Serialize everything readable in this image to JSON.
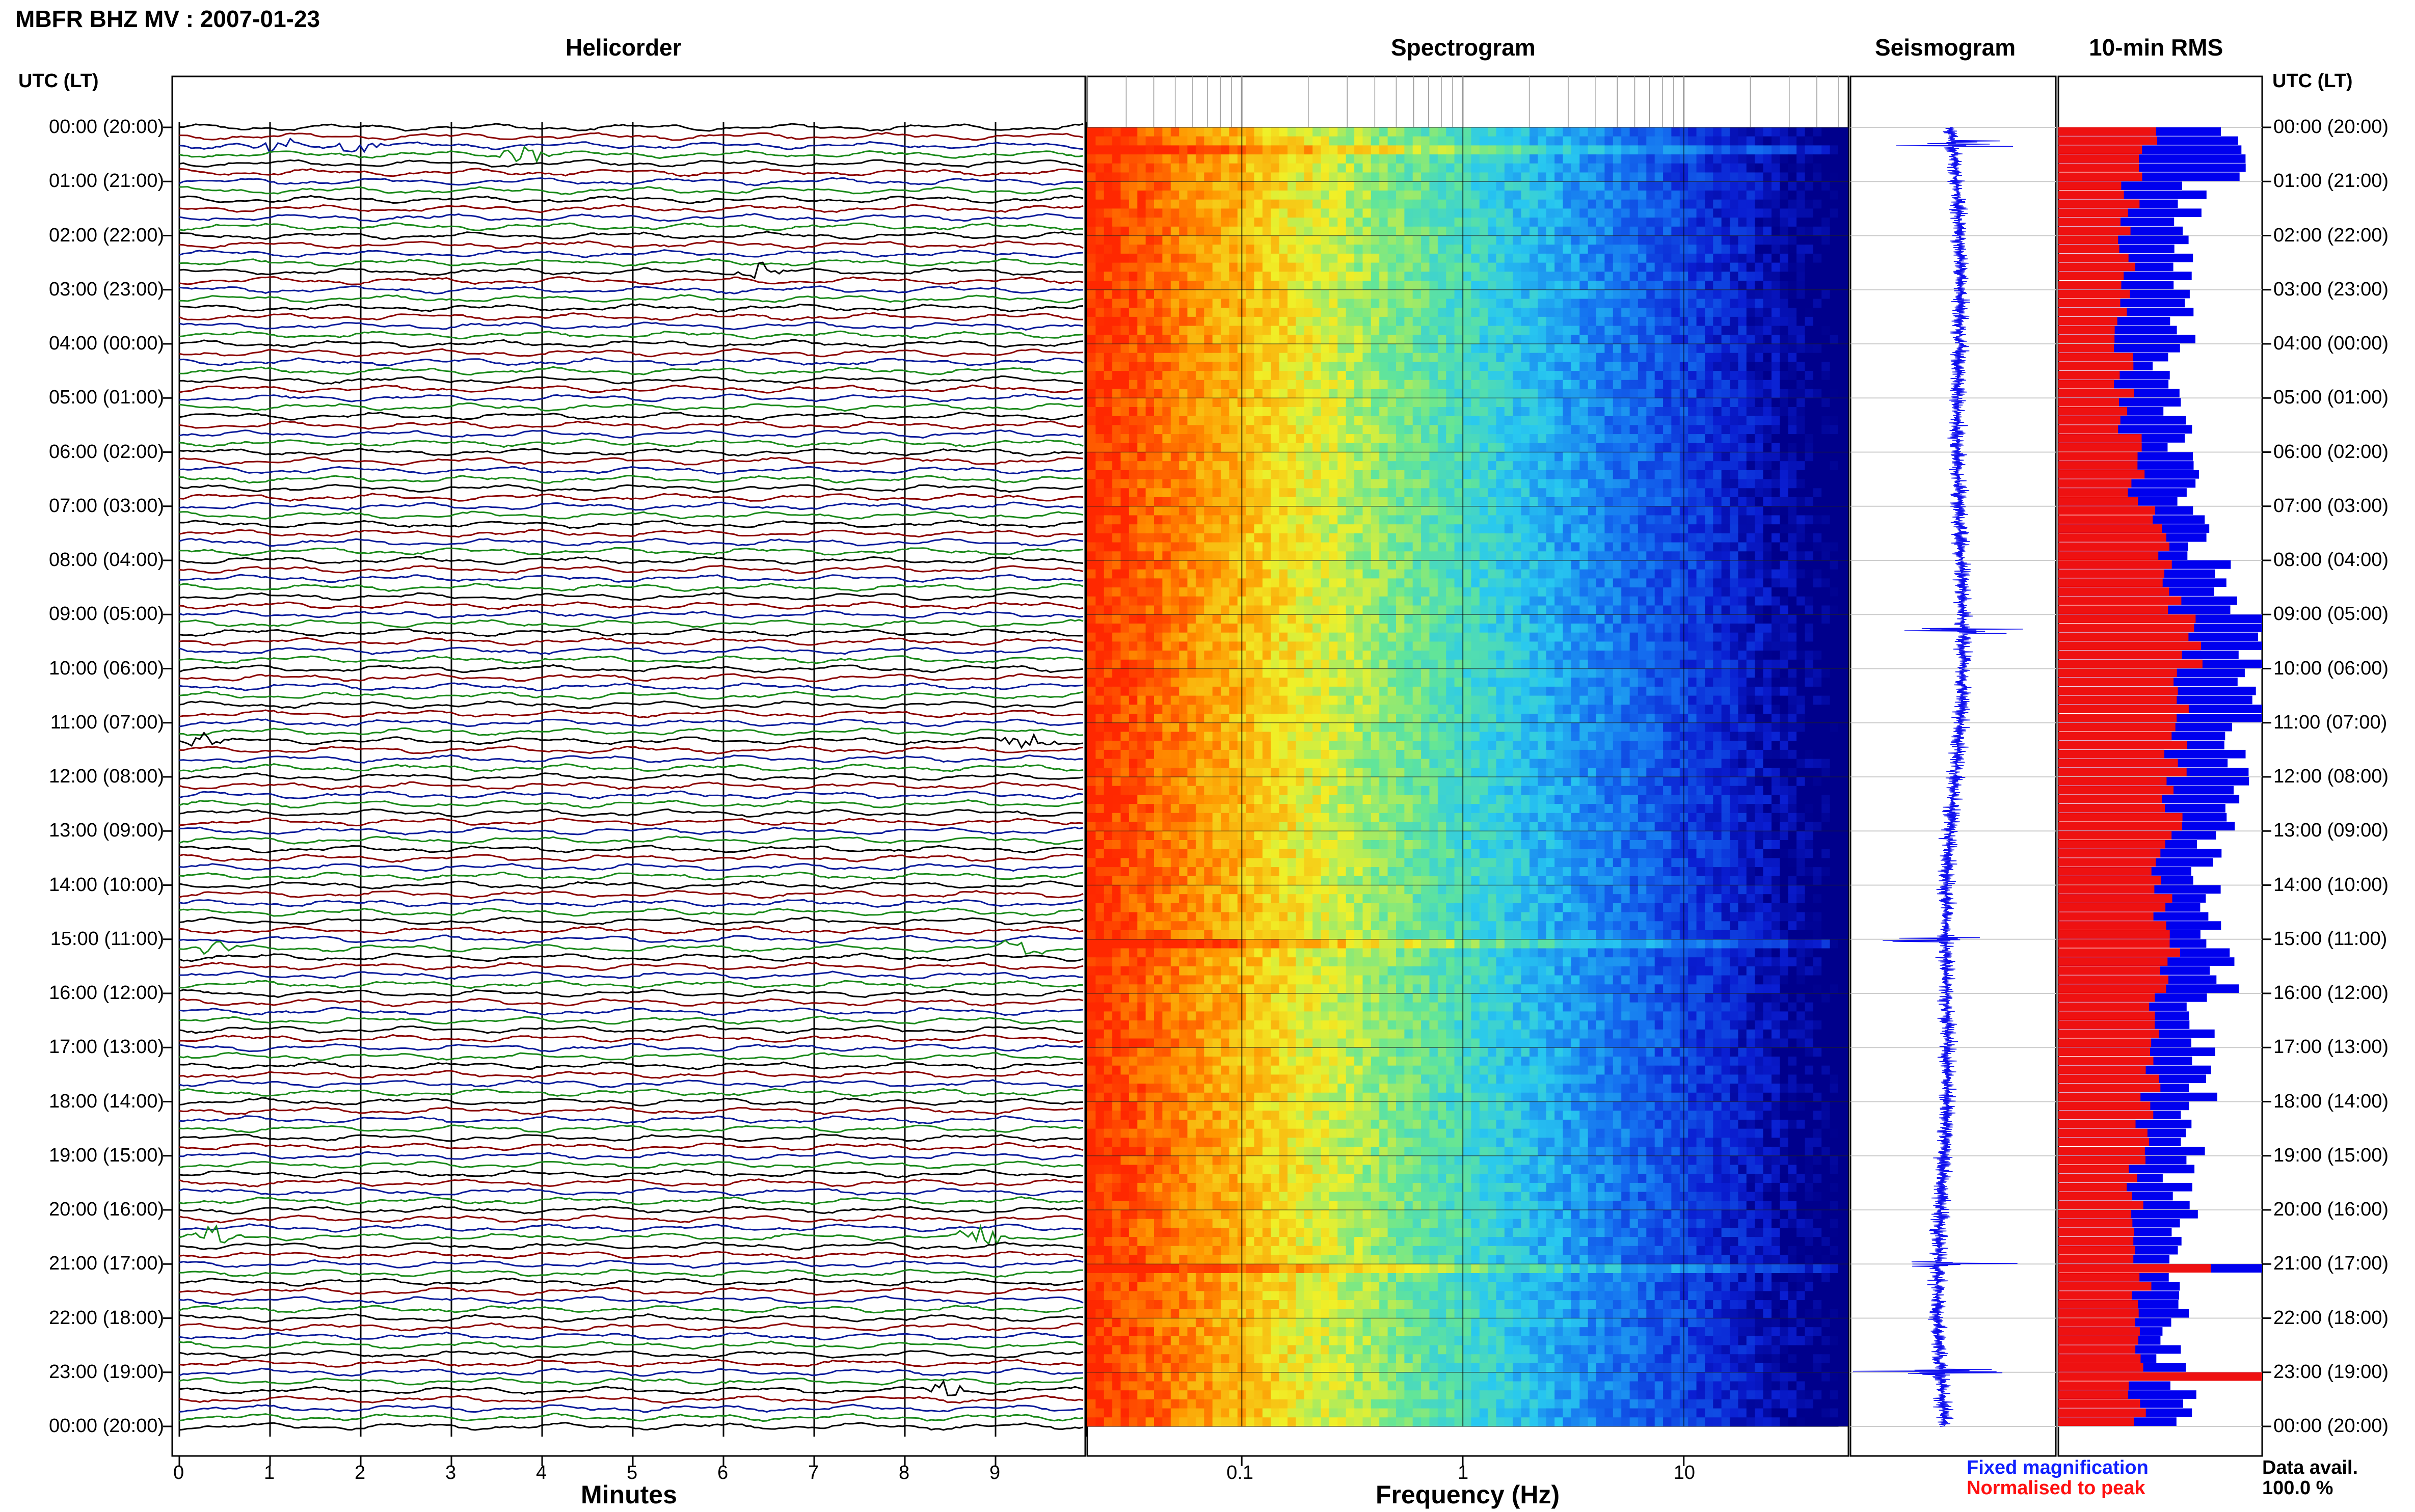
{
  "title": "MBFR BHZ MV : 2007-01-23",
  "panels": {
    "helicorder": "Helicorder",
    "spectrogram": "Spectrogram",
    "seismogram": "Seismogram",
    "rms": "10-min RMS"
  },
  "utc_header": "UTC (LT)",
  "time_labels": [
    "00:00 (20:00)",
    "01:00 (21:00)",
    "02:00 (22:00)",
    "03:00 (23:00)",
    "04:00 (00:00)",
    "05:00 (01:00)",
    "06:00 (02:00)",
    "07:00 (03:00)",
    "08:00 (04:00)",
    "09:00 (05:00)",
    "10:00 (06:00)",
    "11:00 (07:00)",
    "12:00 (08:00)",
    "13:00 (09:00)",
    "14:00 (10:00)",
    "15:00 (11:00)",
    "16:00 (12:00)",
    "17:00 (13:00)",
    "18:00 (14:00)",
    "19:00 (15:00)",
    "20:00 (16:00)",
    "21:00 (17:00)",
    "22:00 (18:00)",
    "23:00 (19:00)",
    "00:00 (20:00)"
  ],
  "helicorder_x": {
    "label": "Minutes",
    "ticks": [
      "0",
      "1",
      "2",
      "3",
      "4",
      "5",
      "6",
      "7",
      "8",
      "9"
    ]
  },
  "spectrogram_x": {
    "label": "Frequency (Hz)",
    "ticks": [
      "0.1",
      "1",
      "10"
    ]
  },
  "legend": {
    "fixed": "Fixed magnification",
    "normalised": "Normalised to peak"
  },
  "data_availability": {
    "label": "Data avail.",
    "value": "100.0 %"
  },
  "colors": {
    "helicorder_traces": [
      "#000000",
      "#8b0000",
      "#0a1a9a",
      "#1a8a1a"
    ],
    "rms_fixed": "#0000ee",
    "rms_normalised": "#ee1111",
    "seismogram": "#1010ee"
  },
  "chart_data": [
    {
      "type": "line",
      "name": "helicorder",
      "xlabel": "Minutes",
      "xlim": [
        0,
        10
      ],
      "rows_per_hour": 6,
      "rows": 144,
      "events_time_min": [
        {
          "row": 2,
          "minute": 2.0
        },
        {
          "row": 2,
          "minute": 1.0
        },
        {
          "row": 3,
          "minute": 3.8
        },
        {
          "row": 16,
          "minute": 6.4
        },
        {
          "row": 68,
          "minute": 0.3
        },
        {
          "row": 68,
          "minute": 9.4
        },
        {
          "row": 91,
          "minute": 0.4
        },
        {
          "row": 91,
          "minute": 9.3
        },
        {
          "row": 123,
          "minute": 0.4
        },
        {
          "row": 123,
          "minute": 8.9
        },
        {
          "row": 140,
          "minute": 8.5
        }
      ]
    },
    {
      "type": "heatmap",
      "name": "spectrogram",
      "xlabel": "Frequency (Hz)",
      "xscale": "log",
      "xlim": [
        0.02,
        50
      ],
      "rows": 144
    },
    {
      "type": "line",
      "name": "seismogram",
      "spikes_hour": [
        0.3,
        9.3,
        15.0,
        21.0,
        23.0
      ]
    },
    {
      "type": "bar",
      "name": "10-min RMS",
      "series": [
        {
          "name": "Fixed magnification",
          "color": "#0000ee"
        },
        {
          "name": "Normalised to peak",
          "color": "#ee1111"
        }
      ],
      "fixed_hourly": [
        0.85,
        0.65,
        0.6,
        0.6,
        0.55,
        0.6,
        0.62,
        0.7,
        0.85,
        0.95,
        0.95,
        0.9,
        0.85,
        0.72,
        0.75,
        0.8,
        0.7,
        0.7,
        0.65,
        0.6,
        0.62,
        0.6,
        0.55,
        0.6
      ],
      "normalised_hourly": [
        0.45,
        0.35,
        0.33,
        0.33,
        0.33,
        0.35,
        0.4,
        0.52,
        0.55,
        0.65,
        0.6,
        0.58,
        0.55,
        0.5,
        0.5,
        0.55,
        0.48,
        0.45,
        0.42,
        0.38,
        0.38,
        0.4,
        0.38,
        0.4
      ],
      "peak_rows": [
        {
          "row": 126,
          "normalised": 0.75
        },
        {
          "row": 138,
          "normalised": 1.0
        }
      ]
    }
  ]
}
